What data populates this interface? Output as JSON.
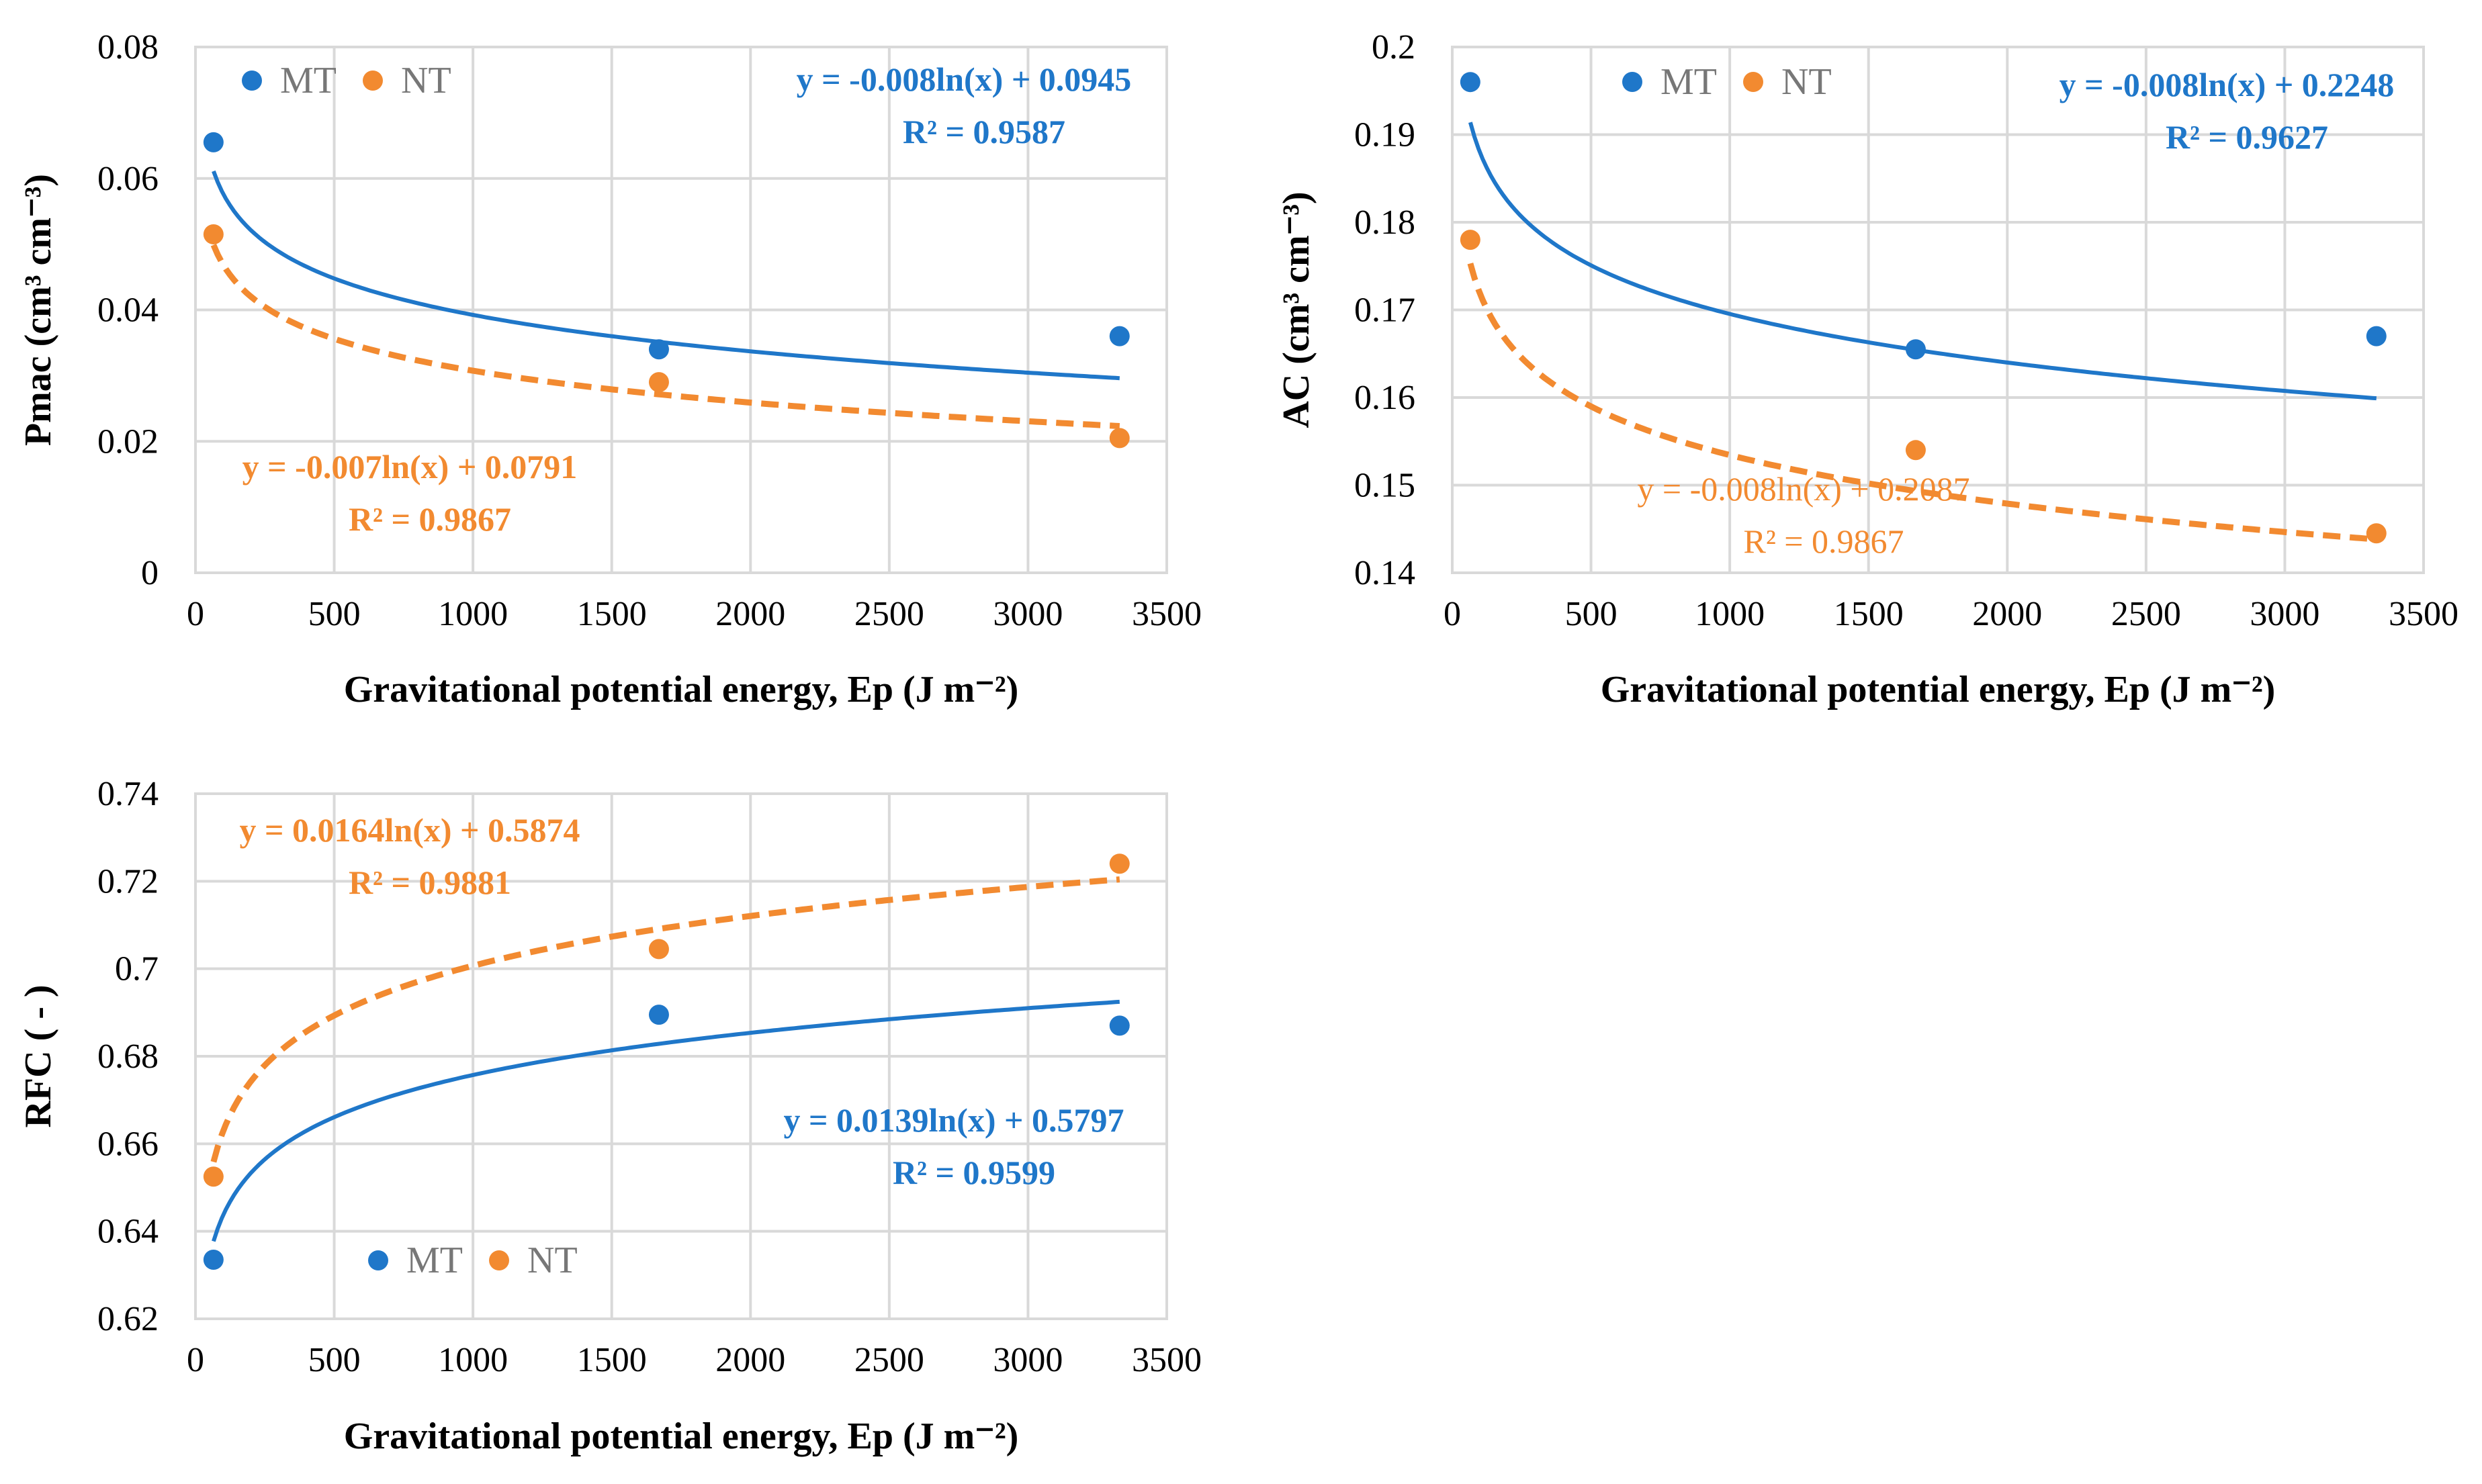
{
  "colors": {
    "MT": "#1f77c9",
    "NT": "#f28a30"
  },
  "chart_data": [
    {
      "type": "scatter",
      "id": "pmac",
      "xlabel": "Gravitational potential energy, Ep (J m⁻²)",
      "ylabel": "Pmac (cm³ cm⁻³)",
      "xlim": [
        0,
        3500
      ],
      "ylim": [
        0,
        0.08
      ],
      "xticks": [
        0,
        500,
        1000,
        1500,
        2000,
        2500,
        3000,
        3500
      ],
      "yticks": [
        0,
        0.02,
        0.04,
        0.06,
        0.08
      ],
      "xtick_labels": [
        "0",
        "500",
        "1000",
        "1500",
        "2000",
        "2500",
        "3000",
        "3500"
      ],
      "ytick_labels": [
        "0",
        "0.02",
        "0.04",
        "0.06",
        "0.08"
      ],
      "legend": [
        "MT",
        "NT"
      ],
      "series": [
        {
          "name": "MT",
          "x": [
            65,
            1670,
            3330
          ],
          "y": [
            0.0655,
            0.034,
            0.036
          ],
          "trend": {
            "a": -0.008,
            "b": 0.0945,
            "style": "solid"
          },
          "equation": "y = -0.008ln(x) + 0.0945",
          "r2": "R² = 0.9587"
        },
        {
          "name": "NT",
          "x": [
            65,
            1670,
            3330
          ],
          "y": [
            0.0515,
            0.029,
            0.0205
          ],
          "trend": {
            "a": -0.007,
            "b": 0.0791,
            "style": "dashed"
          },
          "equation": "y = -0.007ln(x) + 0.0791",
          "r2": "R² = 0.9867"
        }
      ]
    },
    {
      "type": "scatter",
      "id": "ac",
      "xlabel": "Gravitational potential energy, Ep (J m⁻²)",
      "ylabel": "AC (cm³ cm⁻³)",
      "xlim": [
        0,
        3500
      ],
      "ylim": [
        0.14,
        0.2
      ],
      "xticks": [
        0,
        500,
        1000,
        1500,
        2000,
        2500,
        3000,
        3500
      ],
      "yticks": [
        0.14,
        0.15,
        0.16,
        0.17,
        0.18,
        0.19,
        0.2
      ],
      "xtick_labels": [
        "0",
        "500",
        "1000",
        "1500",
        "2000",
        "2500",
        "3000",
        "3500"
      ],
      "ytick_labels": [
        "0.14",
        "0.15",
        "0.16",
        "0.17",
        "0.18",
        "0.19",
        "0.2"
      ],
      "legend": [
        "MT",
        "NT"
      ],
      "series": [
        {
          "name": "MT",
          "x": [
            65,
            1670,
            3330
          ],
          "y": [
            0.196,
            0.1655,
            0.167
          ],
          "trend": {
            "a": -0.008,
            "b": 0.2248,
            "style": "solid"
          },
          "equation": "y = -0.008ln(x) + 0.2248",
          "r2": "R² = 0.9627"
        },
        {
          "name": "NT",
          "x": [
            65,
            1670,
            3330
          ],
          "y": [
            0.178,
            0.154,
            0.1445
          ],
          "trend": {
            "a": -0.008,
            "b": 0.2087,
            "style": "dashed"
          },
          "equation": "y = -0.008ln(x) + 0.2087",
          "r2": "R² = 0.9867"
        }
      ]
    },
    {
      "type": "scatter",
      "id": "rfc",
      "xlabel": "Gravitational potential energy, Ep (J m⁻²)",
      "ylabel": "RFC ( - )",
      "xlim": [
        0,
        3500
      ],
      "ylim": [
        0.62,
        0.74
      ],
      "xticks": [
        0,
        500,
        1000,
        1500,
        2000,
        2500,
        3000,
        3500
      ],
      "yticks": [
        0.62,
        0.64,
        0.66,
        0.68,
        0.7,
        0.72,
        0.74
      ],
      "xtick_labels": [
        "0",
        "500",
        "1000",
        "1500",
        "2000",
        "2500",
        "3000",
        "3500"
      ],
      "ytick_labels": [
        "0.62",
        "0.64",
        "0.66",
        "0.68",
        "0.7",
        "0.72",
        "0.74"
      ],
      "legend": [
        "MT",
        "NT"
      ],
      "series": [
        {
          "name": "MT",
          "x": [
            65,
            1670,
            3330
          ],
          "y": [
            0.6335,
            0.6895,
            0.687
          ],
          "trend": {
            "a": 0.0139,
            "b": 0.5797,
            "style": "solid"
          },
          "equation": "y = 0.0139ln(x) + 0.5797",
          "r2": "R² = 0.9599"
        },
        {
          "name": "NT",
          "x": [
            65,
            1670,
            3330
          ],
          "y": [
            0.6525,
            0.7045,
            0.724
          ],
          "trend": {
            "a": 0.0164,
            "b": 0.5874,
            "style": "dashed"
          },
          "equation": "y = 0.0164ln(x) + 0.5874",
          "r2": "R² = 0.9881"
        }
      ]
    }
  ]
}
